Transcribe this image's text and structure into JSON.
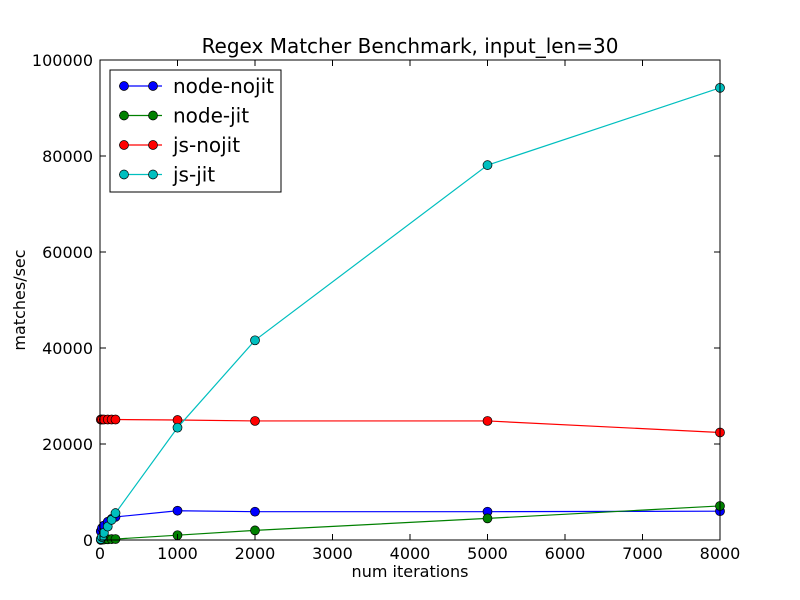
{
  "chart_data": {
    "type": "line",
    "title": "Regex Matcher Benchmark, input_len=30",
    "xlabel": "num iterations",
    "ylabel": "matches/sec",
    "xlim": [
      0,
      8000
    ],
    "ylim": [
      0,
      100000
    ],
    "x_ticks": [
      0,
      1000,
      2000,
      3000,
      4000,
      5000,
      6000,
      7000,
      8000
    ],
    "y_ticks": [
      0,
      20000,
      40000,
      60000,
      80000,
      100000
    ],
    "x_tick_labels": [
      "0",
      "1000",
      "2000",
      "3000",
      "4000",
      "5000",
      "6000",
      "7000",
      "8000"
    ],
    "y_tick_labels": [
      "0",
      "20000",
      "40000",
      "60000",
      "80000",
      "100000"
    ],
    "grid": false,
    "legend_position": "top-left",
    "series": [
      {
        "name": "node-nojit",
        "color": "#0000ff",
        "x": [
          10,
          25,
          50,
          100,
          150,
          200,
          1000,
          2000,
          5000,
          8000
        ],
        "y": [
          1800,
          2500,
          3000,
          3800,
          4400,
          4800,
          6100,
          5900,
          5900,
          6000
        ]
      },
      {
        "name": "node-jit",
        "color": "#008000",
        "x": [
          10,
          25,
          50,
          100,
          150,
          200,
          1000,
          2000,
          5000,
          8000
        ],
        "y": [
          30,
          60,
          100,
          150,
          180,
          200,
          1000,
          2000,
          4500,
          7100
        ]
      },
      {
        "name": "js-nojit",
        "color": "#ff0000",
        "x": [
          10,
          25,
          50,
          100,
          150,
          200,
          1000,
          2000,
          5000,
          8000
        ],
        "y": [
          25100,
          25100,
          25100,
          25100,
          25100,
          25100,
          25000,
          24800,
          24800,
          22400
        ]
      },
      {
        "name": "js-jit",
        "color": "#00bfbf",
        "x": [
          10,
          25,
          50,
          100,
          150,
          200,
          1000,
          2000,
          5000,
          8000
        ],
        "y": [
          200,
          600,
          1500,
          2800,
          4200,
          5600,
          23400,
          41600,
          78100,
          94200
        ]
      }
    ]
  }
}
